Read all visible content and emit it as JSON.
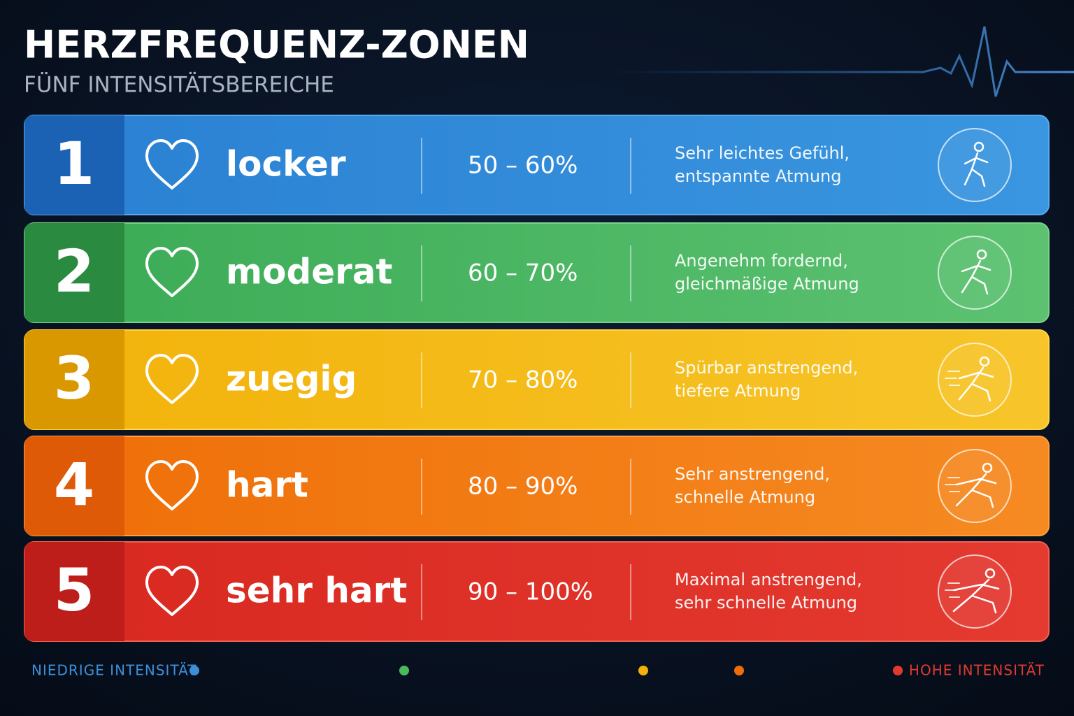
{
  "header": {
    "title": "HERZFREQUENZ-ZONEN",
    "subtitle": "FÜNF INTENSITÄTSBEREICHE"
  },
  "zones": [
    {
      "number": "1",
      "name": "locker",
      "range": "50 – 60%",
      "description": [
        "Sehr leichtes Gefühl,",
        "entspannte Atmung"
      ]
    },
    {
      "number": "2",
      "name": "moderat",
      "range": "60 – 70%",
      "description": [
        "Angenehm fordernd,",
        "gleichmäßige Atmung"
      ]
    },
    {
      "number": "3",
      "name": "zuegig",
      "range": "70 – 80%",
      "description": [
        "Spürbar anstrengend,",
        "tiefere Atmung"
      ]
    },
    {
      "number": "4",
      "name": "hart",
      "range": "80 – 90%",
      "description": [
        "Sehr anstrengend,",
        "schnelle Atmung"
      ]
    },
    {
      "number": "5",
      "name": "sehr hart",
      "range": "90 – 100%",
      "description": [
        "Maximal anstrengend,",
        "sehr schnelle Atmung"
      ]
    }
  ],
  "footer": {
    "low_label": "NIEDRIGE INTENSITÄT",
    "high_label": "HOHE INTENSITÄT"
  }
}
